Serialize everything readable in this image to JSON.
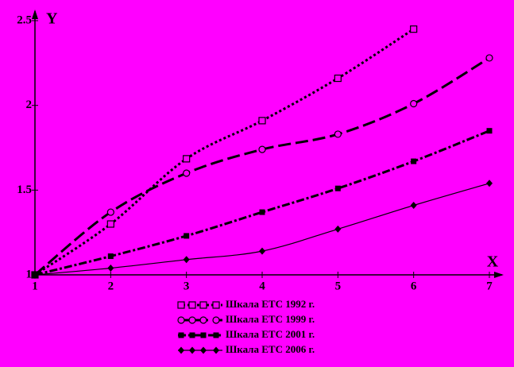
{
  "chart_data": {
    "type": "line",
    "x_label": "X",
    "y_label": "Y",
    "xlim": [
      1,
      7
    ],
    "ylim": [
      1,
      2.5
    ],
    "xticks": [
      1,
      2,
      3,
      4,
      5,
      6,
      7
    ],
    "yticks": [
      1,
      1.5,
      2,
      2.5
    ],
    "series": [
      {
        "name": "Шкала ЕТС 1992 г.",
        "color": "#000000",
        "marker": "square-open",
        "dash": "3,3",
        "width": 3,
        "x": [
          1,
          2,
          3,
          4,
          5,
          6
        ],
        "values": [
          1,
          1.3,
          1.685,
          1.91,
          2.16,
          2.45
        ]
      },
      {
        "name": "Шкала ЕТС 1999 г.",
        "color": "#000000",
        "marker": "circle-open",
        "dash": "16,6",
        "width": 3,
        "x": [
          1,
          2,
          3,
          4,
          5,
          6,
          7
        ],
        "values": [
          1,
          1.37,
          1.6,
          1.74,
          1.83,
          2.01,
          2.28
        ]
      },
      {
        "name": "Шкала ЕТС 2001 г.",
        "color": "#000000",
        "marker": "square",
        "dash": "10,3,3,3",
        "width": 3,
        "x": [
          1,
          2,
          3,
          4,
          5,
          6,
          7
        ],
        "values": [
          1,
          1.11,
          1.23,
          1.37,
          1.51,
          1.67,
          1.85
        ]
      },
      {
        "name": "Шкала ЕТС 2006 г.",
        "color": "#000000",
        "marker": "diamond",
        "dash": "none",
        "width": 1.2,
        "x": [
          1,
          2,
          3,
          4,
          5,
          6,
          7
        ],
        "values": [
          1,
          1.04,
          1.09,
          1.14,
          1.27,
          1.41,
          1.54
        ]
      }
    ]
  }
}
